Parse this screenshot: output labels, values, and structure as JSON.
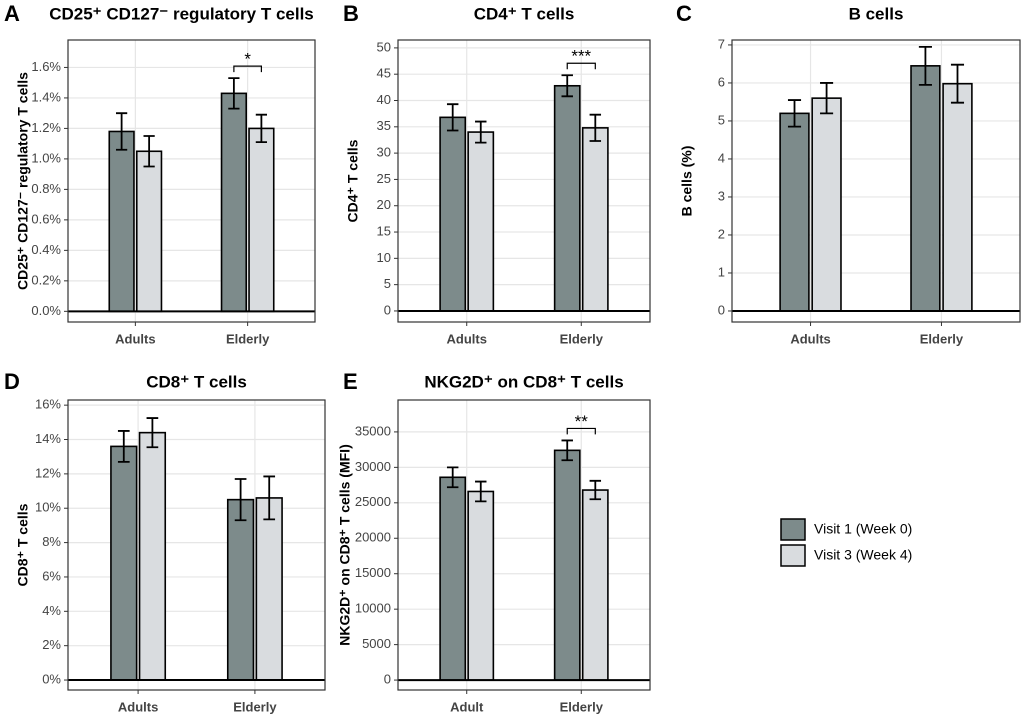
{
  "chart_data": [
    {
      "type": "bar",
      "label": "A",
      "title": "CD25⁺ CD127⁻ regulatory T cells",
      "y_label": "CD25⁺ CD127⁻ regulatory T cells",
      "categories": [
        "Adults",
        "Elderly"
      ],
      "series": [
        {
          "name": "Visit 1 (Week 0)",
          "color": "#7d8b8b",
          "values": [
            1.18,
            1.43
          ],
          "errors": [
            0.12,
            0.1
          ]
        },
        {
          "name": "Visit 3 (Week 4)",
          "color": "#d9dcdf",
          "values": [
            1.05,
            1.2
          ],
          "errors": [
            0.1,
            0.09
          ]
        }
      ],
      "ylim": [
        -0.07,
        1.78
      ],
      "yticks": [
        {
          "value": 0,
          "label": "0.0%"
        },
        {
          "value": 0.2,
          "label": "0.2%"
        },
        {
          "value": 0.4,
          "label": "0.4%"
        },
        {
          "value": 0.6,
          "label": "0.6%"
        },
        {
          "value": 0.8,
          "label": "0.8%"
        },
        {
          "value": 1.0,
          "label": "1.0%"
        },
        {
          "value": 1.2,
          "label": "1.2%"
        },
        {
          "value": 1.4,
          "label": "1.4%"
        },
        {
          "value": 1.6,
          "label": "1.6%"
        }
      ],
      "annotations": [
        {
          "category": "Elderly",
          "text": "*"
        }
      ],
      "grid": true
    },
    {
      "type": "bar",
      "label": "B",
      "title": "CD4⁺ T cells",
      "y_label": "CD4⁺ T cells",
      "categories": [
        "Adults",
        "Elderly"
      ],
      "series": [
        {
          "name": "Visit 1 (Week 0)",
          "color": "#7d8b8b",
          "values": [
            36.8,
            42.8
          ],
          "errors": [
            2.5,
            2
          ]
        },
        {
          "name": "Visit 3 (Week 4)",
          "color": "#d9dcdf",
          "values": [
            34,
            34.8
          ],
          "errors": [
            2,
            2.5
          ]
        }
      ],
      "ylim": [
        -2.1,
        51.5
      ],
      "yticks": [
        0,
        5,
        10,
        15,
        20,
        25,
        30,
        35,
        40,
        45,
        50
      ],
      "annotations": [
        {
          "category": "Elderly",
          "text": "***"
        }
      ],
      "grid": true
    },
    {
      "type": "bar",
      "label": "C",
      "title": "B cells",
      "y_label": "B cells (%)",
      "categories": [
        "Adults",
        "Elderly"
      ],
      "series": [
        {
          "name": "Visit 1 (Week 0)",
          "color": "#7d8b8b",
          "values": [
            5.2,
            6.45
          ],
          "errors": [
            0.35,
            0.5
          ]
        },
        {
          "name": "Visit 3 (Week 4)",
          "color": "#d9dcdf",
          "values": [
            5.6,
            5.98
          ],
          "errors": [
            0.4,
            0.5
          ]
        }
      ],
      "ylim": [
        -0.29,
        7.13
      ],
      "yticks": [
        0,
        1,
        2,
        3,
        4,
        5,
        6,
        7
      ],
      "grid": true
    },
    {
      "type": "bar",
      "label": "D",
      "title": "CD8⁺ T cells",
      "y_label": "CD8⁺ T cells",
      "categories": [
        "Adults",
        "Elderly"
      ],
      "series": [
        {
          "name": "Visit 1 (Week 0)",
          "color": "#7d8b8b",
          "values": [
            13.6,
            10.5
          ],
          "errors": [
            0.9,
            1.2
          ]
        },
        {
          "name": "Visit 3 (Week 4)",
          "color": "#d9dcdf",
          "values": [
            14.4,
            10.6
          ],
          "errors": [
            0.85,
            1.25
          ]
        }
      ],
      "ylim": [
        -0.58,
        16.3
      ],
      "yticks": [
        {
          "value": 0,
          "label": "0%"
        },
        {
          "value": 2,
          "label": "2%"
        },
        {
          "value": 4,
          "label": "4%"
        },
        {
          "value": 6,
          "label": "6%"
        },
        {
          "value": 8,
          "label": "8%"
        },
        {
          "value": 10,
          "label": "10%"
        },
        {
          "value": 12,
          "label": "12%"
        },
        {
          "value": 14,
          "label": "14%"
        },
        {
          "value": 16,
          "label": "16%"
        }
      ],
      "grid": true
    },
    {
      "type": "bar",
      "label": "E",
      "title": "NKG2D⁺ on CD8⁺ T cells",
      "y_label": "NKG2D⁺ on CD8⁺ T cells (MFI)",
      "categories": [
        "Adult",
        "Elderly"
      ],
      "series": [
        {
          "name": "Visit 1 (Week 0)",
          "color": "#7d8b8b",
          "values": [
            28600,
            32400
          ],
          "errors": [
            1400,
            1400
          ]
        },
        {
          "name": "Visit 3 (Week 4)",
          "color": "#d9dcdf",
          "values": [
            26600,
            26800
          ],
          "errors": [
            1400,
            1300
          ]
        }
      ],
      "ylim": [
        -1400,
        39500
      ],
      "yticks": [
        0,
        5000,
        10000,
        15000,
        20000,
        25000,
        30000,
        35000
      ],
      "annotations": [
        {
          "category": "Elderly",
          "text": "**"
        }
      ],
      "grid": true
    }
  ]
}
